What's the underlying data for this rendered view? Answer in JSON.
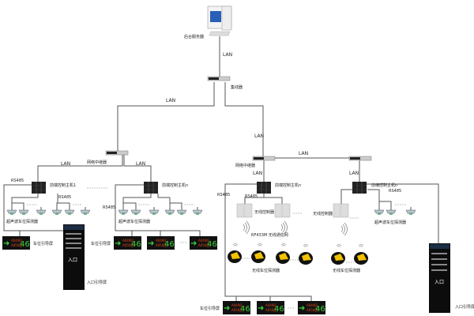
{
  "server": {
    "label": "后台服务器"
  },
  "hub": {
    "label": "集线器"
  },
  "link_label": "LAN",
  "rs485_label": "RS485",
  "repeater": {
    "label": "网络中继器"
  },
  "controller_1": {
    "label": "前端控制主机1"
  },
  "controller_n": {
    "label": "前端控制主机n"
  },
  "ultrasonic_sensor": {
    "label": "超声波车位探测器"
  },
  "guide_screen": {
    "label": "车位引导屏",
    "arrow": "➜",
    "text_top": "A049区",
    "text_bottom": "A050区",
    "count": "46"
  },
  "entrance_screen": {
    "label": "入口引导屏",
    "entrance_text": "入口"
  },
  "wireless_controller": {
    "label": "无线控制器"
  },
  "wireless_network": {
    "label": "RF433M 无线通信网"
  },
  "wireless_detector": {
    "label": "无线车位探测器"
  },
  "colors": {
    "screen_green": "#3bd13b",
    "screen_red": "#e04a1a",
    "detector_yellow": "#f2c200",
    "monitor_blue": "#2a5fb8"
  }
}
